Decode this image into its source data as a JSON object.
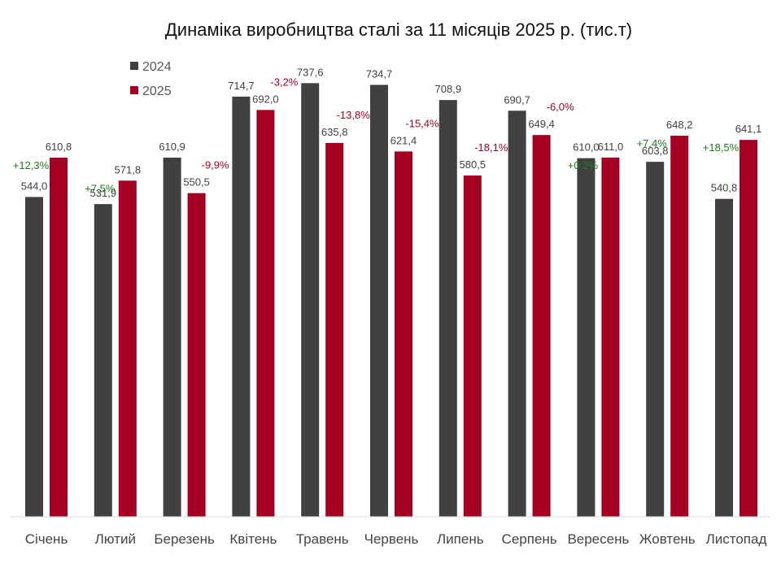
{
  "chart_data": {
    "type": "bar",
    "title": "Динаміка виробництва сталі за 11 місяців 2025 р. (тис.т)",
    "categories": [
      "Січень",
      "Лютий",
      "Березень",
      "Квітень",
      "Травень",
      "Червень",
      "Липень",
      "Серпень",
      "Вересень",
      "Жовтень",
      "Листопад"
    ],
    "series": [
      {
        "name": "2024",
        "color": "#404040",
        "values": [
          544.0,
          531.9,
          610.9,
          714.7,
          737.6,
          734.7,
          708.9,
          690.7,
          610.0,
          603.8,
          540.8
        ],
        "labels": [
          "544,0",
          "531,9",
          "610,9",
          "714,7",
          "737,6",
          "734,7",
          "708,9",
          "690,7",
          "610,0",
          "603,8",
          "540,8"
        ]
      },
      {
        "name": "2025",
        "color": "#A50021",
        "values": [
          610.8,
          571.8,
          550.5,
          692.0,
          635.8,
          621.4,
          580.5,
          649.4,
          611.0,
          648.2,
          641.1
        ],
        "labels": [
          "610,8",
          "571,8",
          "550,5",
          "692,0",
          "635,8",
          "621,4",
          "580,5",
          "649,4",
          "611,0",
          "648,2",
          "641,1"
        ]
      }
    ],
    "changes": [
      "+12,3%",
      "+7,5%",
      "-9,9%",
      "-3,2%",
      "-13,8%",
      "-15,4%",
      "-18,1%",
      "-6,0%",
      "+0,2%",
      "+7,4%",
      "+18,5%"
    ],
    "change_colors": {
      "positive": "#1E7B1E",
      "negative": "#A50021"
    },
    "ylim": [
      0,
      800
    ],
    "legend": "top-left",
    "grid": false
  }
}
